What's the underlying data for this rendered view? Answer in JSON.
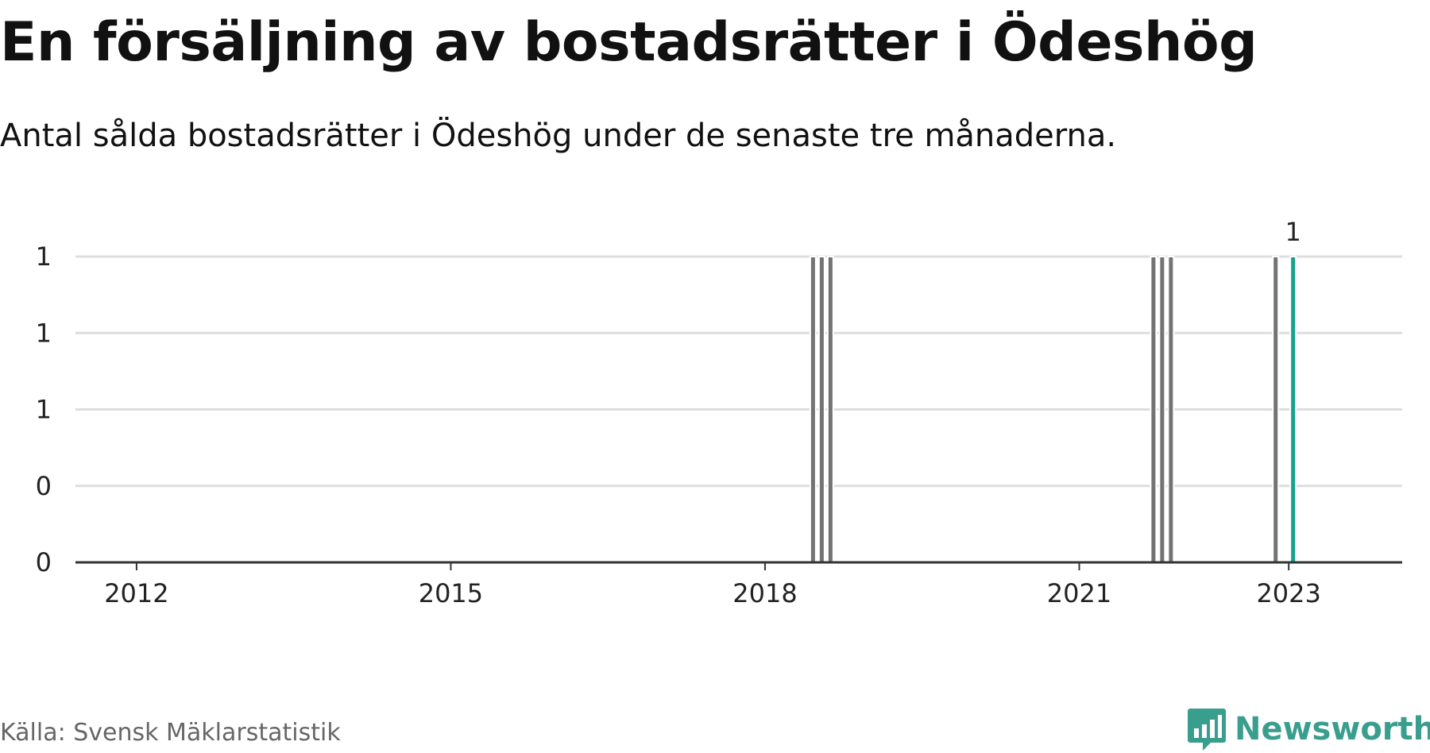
{
  "title": "En försäljning av bostadsrätter i Ödeshög",
  "subtitle": "Antal sålda bostadsrätter i Ödeshög under de senaste tre månaderna.",
  "source": "Källa: Svensk Mäklarstatistik",
  "brand": "Newsworthy",
  "colors": {
    "bar": "#737373",
    "highlight": "#14a38b",
    "grid": "#dddddd",
    "axis": "#333333",
    "brand": "#3a9e8f"
  },
  "chart_data": {
    "type": "bar",
    "title": "En försäljning av bostadsrätter i Ödeshög",
    "subtitle": "Antal sålda bostadsrätter i Ödeshög under de senaste tre månaderna.",
    "xlabel": "",
    "ylabel": "",
    "x_ticks": [
      "2012",
      "2015",
      "2018",
      "2021",
      "2023"
    ],
    "y_ticks": [
      "0",
      "0",
      "1",
      "1",
      "1"
    ],
    "ylim": [
      0,
      1
    ],
    "xlim": [
      "2011-06",
      "2024-02"
    ],
    "grid": true,
    "legend": "none",
    "series": [
      {
        "points": [
          {
            "x": "2018-06",
            "y": 1
          },
          {
            "x": "2018-07",
            "y": 1
          },
          {
            "x": "2018-08",
            "y": 1
          },
          {
            "x": "2021-09",
            "y": 1
          },
          {
            "x": "2021-10",
            "y": 1
          },
          {
            "x": "2021-11",
            "y": 1
          },
          {
            "x": "2022-11",
            "y": 1
          },
          {
            "x": "2023-01",
            "y": 1,
            "highlight": true,
            "label": "1"
          }
        ]
      }
    ]
  }
}
